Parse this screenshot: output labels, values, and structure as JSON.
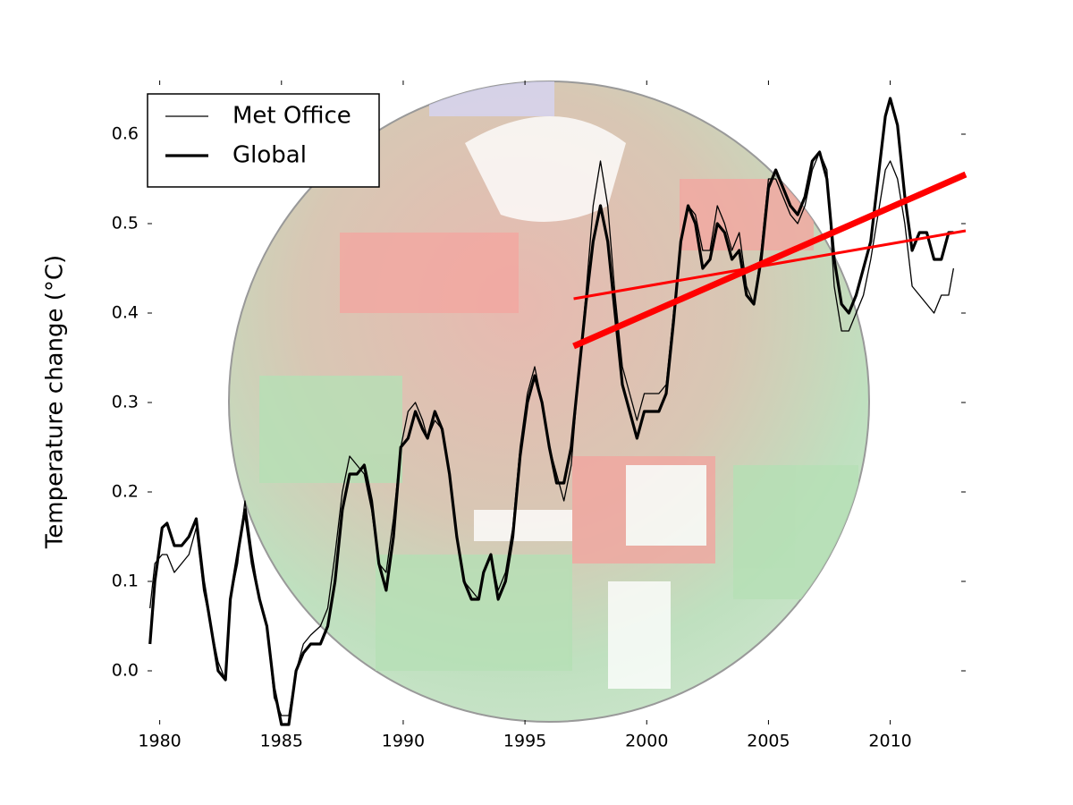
{
  "chart_data": {
    "type": "line",
    "ylabel": "Temperature change (°C)",
    "xlim": [
      1979.5,
      2013.1
    ],
    "ylim": [
      -0.06,
      0.66
    ],
    "xticks": [
      1980,
      1985,
      1990,
      1995,
      2000,
      2005,
      2010
    ],
    "yticks": [
      {
        "value": 0,
        "label": "0.0"
      },
      0.1,
      0.2,
      0.3,
      0.4,
      0.5,
      0.6
    ],
    "legend": "upper left",
    "x": [
      1979.6,
      1979.8,
      1980.1,
      1980.3,
      1980.6,
      1980.9,
      1981.2,
      1981.5,
      1981.8,
      1982.1,
      1982.4,
      1982.7,
      1982.9,
      1983.2,
      1983.5,
      1983.8,
      1984.1,
      1984.4,
      1984.7,
      1985.0,
      1985.3,
      1985.6,
      1985.9,
      1986.2,
      1986.6,
      1986.9,
      1987.2,
      1987.5,
      1987.8,
      1988.1,
      1988.4,
      1988.7,
      1989.0,
      1989.3,
      1989.6,
      1989.9,
      1990.2,
      1990.5,
      1990.8,
      1991.0,
      1991.3,
      1991.6,
      1991.9,
      1992.2,
      1992.5,
      1992.8,
      1993.1,
      1993.3,
      1993.6,
      1993.9,
      1994.2,
      1994.5,
      1994.8,
      1995.1,
      1995.4,
      1995.7,
      1996.0,
      1996.3,
      1996.6,
      1996.9,
      1997.2,
      1997.5,
      1997.8,
      1998.1,
      1998.4,
      1998.7,
      1999.0,
      1999.3,
      1999.6,
      1999.9,
      2000.2,
      2000.5,
      2000.8,
      2001.1,
      2001.4,
      2001.7,
      2002.0,
      2002.3,
      2002.6,
      2002.9,
      2003.2,
      2003.5,
      2003.8,
      2004.1,
      2004.4,
      2004.7,
      2005.0,
      2005.3,
      2005.6,
      2005.9,
      2006.2,
      2006.5,
      2006.8,
      2007.1,
      2007.4,
      2007.7,
      2008.0,
      2008.3,
      2008.6,
      2008.9,
      2009.2,
      2009.5,
      2009.8,
      2010.0,
      2010.3,
      2010.6,
      2010.9,
      2011.2,
      2011.5,
      2011.8,
      2012.1,
      2012.4,
      2012.6
    ],
    "series": [
      {
        "name": "Met Office",
        "color": "#000000",
        "linewidth": 1.3,
        "values": [
          0.07,
          0.12,
          0.13,
          0.13,
          0.11,
          0.12,
          0.13,
          0.16,
          0.09,
          0.05,
          0.01,
          -0.01,
          0.08,
          0.12,
          0.19,
          0.13,
          0.08,
          0.05,
          -0.03,
          -0.05,
          -0.05,
          0.0,
          0.03,
          0.04,
          0.05,
          0.07,
          0.13,
          0.2,
          0.24,
          0.23,
          0.22,
          0.18,
          0.12,
          0.11,
          0.17,
          0.25,
          0.29,
          0.3,
          0.28,
          0.26,
          0.28,
          0.27,
          0.22,
          0.15,
          0.1,
          0.09,
          0.08,
          0.11,
          0.13,
          0.09,
          0.11,
          0.16,
          0.25,
          0.31,
          0.34,
          0.3,
          0.25,
          0.22,
          0.19,
          0.23,
          0.33,
          0.42,
          0.52,
          0.57,
          0.52,
          0.42,
          0.34,
          0.31,
          0.28,
          0.31,
          0.31,
          0.31,
          0.32,
          0.4,
          0.48,
          0.52,
          0.51,
          0.47,
          0.47,
          0.52,
          0.5,
          0.47,
          0.49,
          0.43,
          0.41,
          0.47,
          0.55,
          0.55,
          0.53,
          0.51,
          0.5,
          0.52,
          0.56,
          0.58,
          0.56,
          0.43,
          0.38,
          0.38,
          0.4,
          0.42,
          0.46,
          0.51,
          0.56,
          0.57,
          0.55,
          0.5,
          0.43,
          0.42,
          0.41,
          0.4,
          0.42,
          0.42,
          0.45
        ]
      },
      {
        "name": "Global",
        "color": "#000000",
        "linewidth": 3.2,
        "values": [
          0.03,
          0.1,
          0.16,
          0.165,
          0.14,
          0.14,
          0.15,
          0.17,
          0.1,
          0.05,
          0.0,
          -0.01,
          0.08,
          0.13,
          0.18,
          0.12,
          0.08,
          0.05,
          -0.02,
          -0.06,
          -0.06,
          0.0,
          0.02,
          0.03,
          0.03,
          0.05,
          0.1,
          0.18,
          0.22,
          0.22,
          0.23,
          0.19,
          0.12,
          0.09,
          0.15,
          0.25,
          0.26,
          0.29,
          0.27,
          0.26,
          0.29,
          0.27,
          0.22,
          0.15,
          0.1,
          0.08,
          0.08,
          0.11,
          0.13,
          0.08,
          0.1,
          0.15,
          0.24,
          0.3,
          0.33,
          0.3,
          0.25,
          0.21,
          0.21,
          0.25,
          0.33,
          0.41,
          0.48,
          0.52,
          0.48,
          0.4,
          0.32,
          0.29,
          0.26,
          0.29,
          0.29,
          0.29,
          0.31,
          0.39,
          0.48,
          0.52,
          0.5,
          0.45,
          0.46,
          0.5,
          0.49,
          0.46,
          0.47,
          0.42,
          0.41,
          0.46,
          0.54,
          0.56,
          0.54,
          0.52,
          0.51,
          0.53,
          0.57,
          0.58,
          0.55,
          0.46,
          0.41,
          0.4,
          0.42,
          0.45,
          0.48,
          0.55,
          0.62,
          0.64,
          0.61,
          0.53,
          0.47,
          0.49,
          0.49,
          0.46,
          0.46,
          0.49,
          0.49
        ]
      }
    ],
    "trend_lines": [
      {
        "color": "#ff0000",
        "linewidth": 7,
        "x": [
          1997,
          2013.1
        ],
        "values": [
          0.363,
          0.555
        ]
      },
      {
        "color": "#ff0000",
        "linewidth": 3,
        "x": [
          1997,
          2013.1
        ],
        "values": [
          0.416,
          0.492
        ]
      }
    ]
  }
}
